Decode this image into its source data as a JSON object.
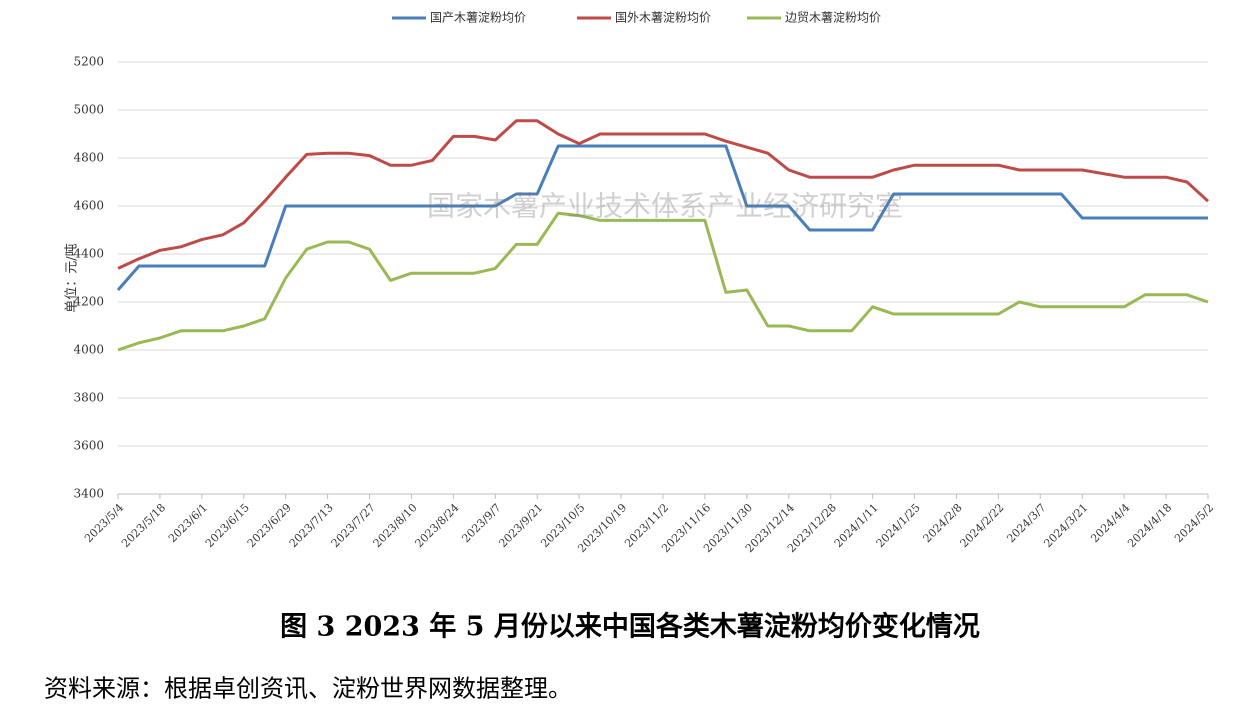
{
  "chart_data": {
    "type": "line",
    "title": "图 3   2023 年 5 月份以来中国各类木薯淀粉均价变化情况",
    "source": "资料来源：根据卓创资讯、淀粉世界网数据整理。",
    "watermark": "国家木薯产业技术体系产业经济研究室",
    "ylabel": "单位：元/吨",
    "categories": [
      "2023/5/4",
      null,
      "2023/5/18",
      null,
      "2023/6/1",
      null,
      "2023/6/15",
      null,
      "2023/6/29",
      null,
      "2023/7/13",
      null,
      "2023/7/27",
      null,
      "2023/8/10",
      null,
      "2023/8/24",
      null,
      "2023/9/7",
      null,
      "2023/9/21",
      null,
      "2023/10/5",
      null,
      "2023/10/19",
      null,
      "2023/11/2",
      null,
      "2023/11/16",
      null,
      "2023/11/30",
      null,
      "2023/12/14",
      null,
      "2023/12/28",
      null,
      "2024/1/11",
      null,
      "2024/1/25",
      null,
      "2024/2/8",
      null,
      "2024/2/22",
      null,
      "2024/3/7",
      null,
      "2024/3/21",
      null,
      "2024/4/4",
      null,
      "2024/4/18",
      null,
      "2024/5/2"
    ],
    "series": [
      {
        "name": "国产木薯淀粉均价",
        "color": "#4a7ebb",
        "values": [
          4250,
          4350,
          4350,
          4350,
          4350,
          4350,
          4350,
          4350,
          4600,
          4600,
          4600,
          4600,
          4600,
          4600,
          4600,
          4600,
          4600,
          4600,
          4600,
          4650,
          4650,
          4850,
          4850,
          4850,
          4850,
          4850,
          4850,
          4850,
          4850,
          4850,
          4600,
          4600,
          4600,
          4500,
          4500,
          4500,
          4500,
          4650,
          4650,
          4650,
          4650,
          4650,
          4650,
          4650,
          4650,
          4650,
          4550,
          4550,
          4550,
          4550,
          4550,
          4550,
          4550
        ]
      },
      {
        "name": "国外木薯淀粉均价",
        "color": "#be4b48",
        "values": [
          4340,
          4380,
          4415,
          4430,
          4460,
          4480,
          4530,
          4620,
          4720,
          4815,
          4820,
          4820,
          4810,
          4770,
          4770,
          4790,
          4890,
          4890,
          4875,
          4955,
          4955,
          4900,
          4860,
          4900,
          4900,
          4900,
          4900,
          4900,
          4900,
          4870,
          4845,
          4820,
          4750,
          4720,
          4720,
          4720,
          4720,
          4750,
          4770,
          4770,
          4770,
          4770,
          4770,
          4750,
          4750,
          4750,
          4750,
          4735,
          4720,
          4720,
          4720,
          4700,
          4620
        ]
      },
      {
        "name": "边贸木薯淀粉均价",
        "color": "#98b954",
        "values": [
          4000,
          4030,
          4050,
          4080,
          4080,
          4080,
          4100,
          4130,
          4300,
          4420,
          4450,
          4450,
          4420,
          4290,
          4320,
          4320,
          4320,
          4320,
          4340,
          4440,
          4440,
          4570,
          4560,
          4540,
          4540,
          4540,
          4540,
          4540,
          4540,
          4240,
          4250,
          4100,
          4100,
          4080,
          4080,
          4080,
          4180,
          4150,
          4150,
          4150,
          4150,
          4150,
          4150,
          4200,
          4180,
          4180,
          4180,
          4180,
          4180,
          4230,
          4230,
          4230,
          4200
        ]
      }
    ],
    "ylim": [
      3400,
      5200
    ],
    "yticks": [
      3400,
      3600,
      3800,
      4000,
      4200,
      4400,
      4600,
      4800,
      5000,
      5200
    ],
    "grid": true
  }
}
